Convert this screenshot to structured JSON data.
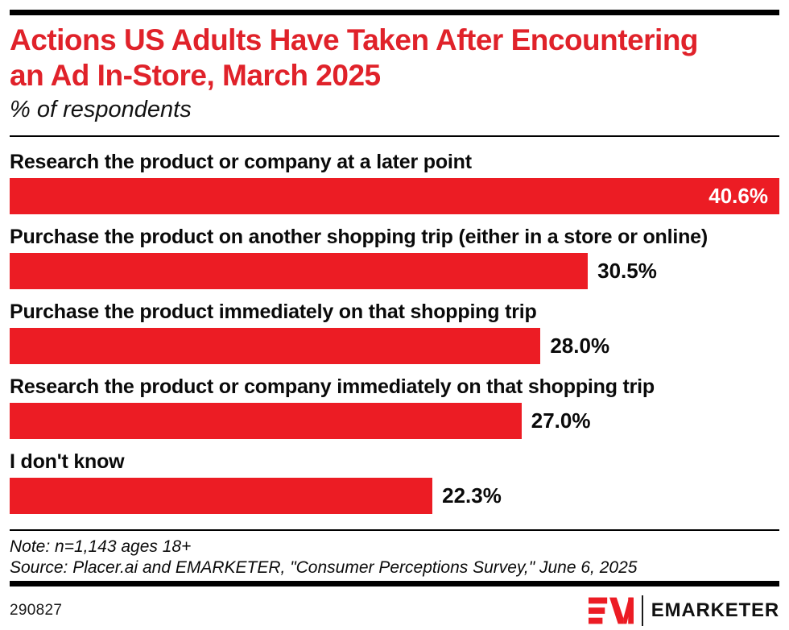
{
  "header": {
    "title_line1": "Actions US Adults Have Taken After Encountering",
    "title_line2": "an Ad In-Store, March 2025",
    "subtitle": "% of respondents"
  },
  "chart_data": {
    "type": "bar",
    "orientation": "horizontal",
    "title": "Actions US Adults Have Taken After Encountering an Ad In-Store, March 2025",
    "subtitle": "% of respondents",
    "unit": "%",
    "axis_max": 40.6,
    "grid": false,
    "legend": false,
    "bar_color": "#ec1c24",
    "categories": [
      "Research the product or company at a later point",
      "Purchase the product on another shopping trip (either in a store or online)",
      "Purchase the product immediately on that shopping trip",
      "Research the product or company immediately on that shopping trip",
      "I don't know"
    ],
    "values": [
      40.6,
      30.5,
      28.0,
      27.0,
      22.3
    ],
    "value_labels": [
      "40.6%",
      "30.5%",
      "28.0%",
      "27.0%",
      "22.3%"
    ]
  },
  "footnotes": {
    "note": "Note: n=1,143 ages 18+",
    "source": "Source: Placer.ai and EMARKETER, \"Consumer Perceptions Survey,\" June 6, 2025"
  },
  "footer": {
    "chart_id": "290827",
    "brand_monogram": "EM",
    "brand_name": "EMARKETER"
  },
  "colors": {
    "title_red": "#e0222a",
    "bar_red": "#ec1c24",
    "rule_black": "#000000"
  }
}
